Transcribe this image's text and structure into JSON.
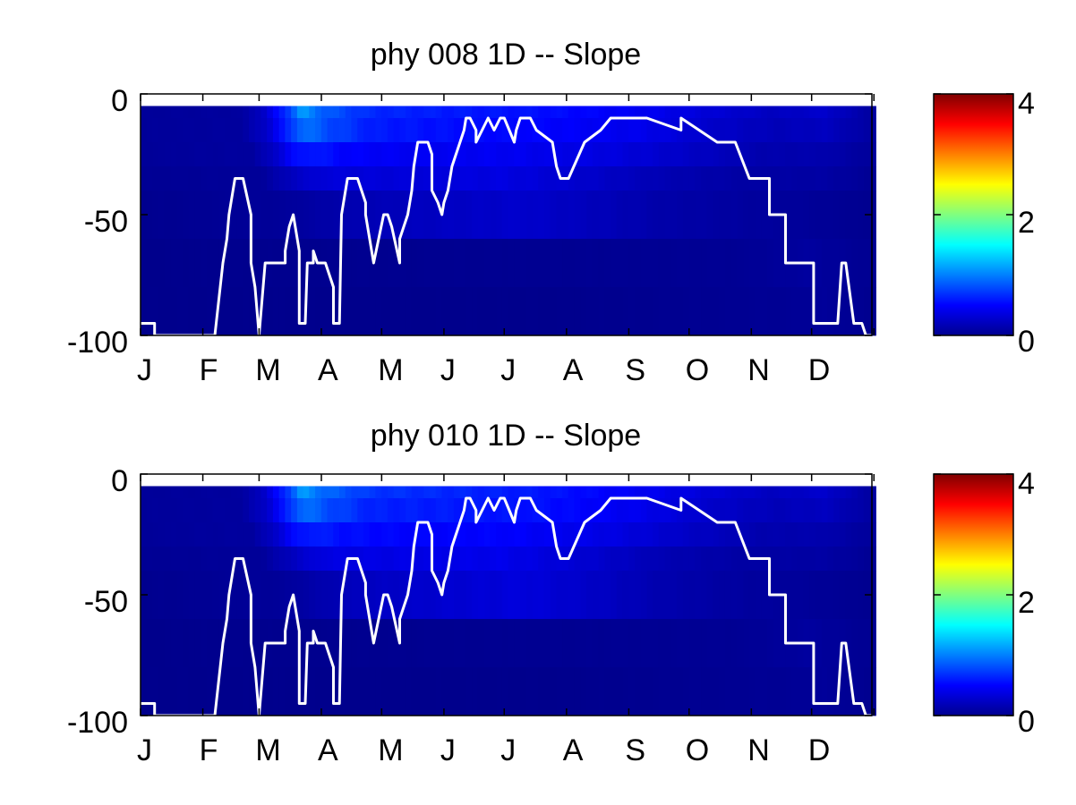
{
  "chart_data": [
    {
      "type": "heatmap",
      "title": "phy  008 1D   -- Slope",
      "xlabel": "",
      "ylabel": "",
      "x_ticklabels": [
        "J",
        "F",
        "M",
        "A",
        "M",
        "J",
        "J",
        "A",
        "S",
        "O",
        "N",
        "D"
      ],
      "y_ticklabels": [
        "0",
        "-50",
        "-100"
      ],
      "y_ticks": [
        0,
        -50,
        -100
      ],
      "ylim": [
        -100,
        0
      ],
      "xlim": [
        1,
        365
      ],
      "colormap": "jet",
      "clim": [
        0,
        4
      ],
      "colorbar_ticklabels": [
        "4",
        "2",
        "0"
      ],
      "colorbar_ticks": [
        4,
        2,
        0
      ],
      "depth_bands": [
        [
          -5,
          -10
        ],
        [
          -10,
          -20
        ],
        [
          -20,
          -30
        ],
        [
          -30,
          -40
        ],
        [
          -40,
          -60
        ],
        [
          -60,
          -80
        ],
        [
          -80,
          -100
        ]
      ],
      "band_profiles": [
        [
          [
            1,
            0.1
          ],
          [
            50,
            0.12
          ],
          [
            62,
            0.3
          ],
          [
            72,
            0.7
          ],
          [
            80,
            1.1
          ],
          [
            92,
            0.85
          ],
          [
            115,
            0.65
          ],
          [
            150,
            0.6
          ],
          [
            200,
            0.55
          ],
          [
            250,
            0.45
          ],
          [
            280,
            0.35
          ],
          [
            315,
            0.25
          ],
          [
            340,
            0.3
          ],
          [
            365,
            0.12
          ]
        ],
        [
          [
            1,
            0.1
          ],
          [
            50,
            0.12
          ],
          [
            62,
            0.28
          ],
          [
            72,
            0.6
          ],
          [
            80,
            0.95
          ],
          [
            92,
            0.8
          ],
          [
            115,
            0.6
          ],
          [
            150,
            0.55
          ],
          [
            200,
            0.5
          ],
          [
            250,
            0.42
          ],
          [
            280,
            0.3
          ],
          [
            315,
            0.22
          ],
          [
            340,
            0.25
          ],
          [
            365,
            0.12
          ]
        ],
        [
          [
            1,
            0.1
          ],
          [
            55,
            0.12
          ],
          [
            65,
            0.25
          ],
          [
            75,
            0.5
          ],
          [
            85,
            0.6
          ],
          [
            100,
            0.5
          ],
          [
            130,
            0.45
          ],
          [
            180,
            0.45
          ],
          [
            230,
            0.38
          ],
          [
            270,
            0.28
          ],
          [
            310,
            0.18
          ],
          [
            340,
            0.18
          ],
          [
            365,
            0.1
          ]
        ],
        [
          [
            1,
            0.08
          ],
          [
            60,
            0.1
          ],
          [
            75,
            0.25
          ],
          [
            90,
            0.35
          ],
          [
            130,
            0.35
          ],
          [
            180,
            0.38
          ],
          [
            220,
            0.3
          ],
          [
            260,
            0.2
          ],
          [
            300,
            0.14
          ],
          [
            340,
            0.14
          ],
          [
            365,
            0.08
          ]
        ],
        [
          [
            1,
            0.06
          ],
          [
            70,
            0.1
          ],
          [
            90,
            0.15
          ],
          [
            110,
            0.2
          ],
          [
            140,
            0.25
          ],
          [
            190,
            0.3
          ],
          [
            230,
            0.22
          ],
          [
            260,
            0.16
          ],
          [
            300,
            0.12
          ],
          [
            330,
            0.1
          ],
          [
            365,
            0.06
          ]
        ],
        [
          [
            1,
            0.05
          ],
          [
            90,
            0.06
          ],
          [
            200,
            0.07
          ],
          [
            300,
            0.08
          ],
          [
            330,
            0.12
          ],
          [
            365,
            0.07
          ]
        ],
        [
          [
            1,
            0.05
          ],
          [
            200,
            0.05
          ],
          [
            320,
            0.08
          ],
          [
            340,
            0.1
          ],
          [
            365,
            0.06
          ]
        ]
      ],
      "mixed_layer_depth": {
        "x": [
          1,
          8,
          8,
          38,
          42,
          44,
          45,
          48,
          52,
          56,
          56,
          58,
          60,
          60,
          63,
          73,
          73,
          75,
          77,
          80,
          80,
          83,
          84,
          87,
          87,
          89,
          93,
          97,
          97,
          100,
          101,
          104,
          109,
          113,
          113,
          115,
          117,
          122,
          124,
          124,
          126,
          130,
          130,
          134,
          134,
          136,
          137,
          139,
          144,
          146,
          146,
          149,
          151,
          152,
          154,
          156,
          158,
          160,
          162,
          163,
          165,
          168,
          168,
          174,
          177,
          180,
          182,
          187,
          188,
          190,
          191,
          195,
          198,
          206,
          208,
          210,
          214,
          222,
          222,
          230,
          235,
          240,
          240,
          253,
          253,
          270,
          270,
          288,
          288,
          294,
          297,
          304,
          306,
          314,
          314,
          322,
          322,
          336,
          336,
          348,
          350,
          352,
          352,
          356,
          359,
          360,
          362,
          365
        ],
        "y": [
          -95,
          -95,
          -100,
          -100,
          -70,
          -60,
          -50,
          -35,
          -35,
          -50,
          -70,
          -80,
          -100,
          -100,
          -70,
          -70,
          -65,
          -55,
          -50,
          -65,
          -95,
          -95,
          -70,
          -70,
          -65,
          -70,
          -70,
          -80,
          -95,
          -95,
          -50,
          -35,
          -35,
          -45,
          -50,
          -60,
          -70,
          -50,
          -50,
          -50,
          -55,
          -70,
          -60,
          -50,
          -50,
          -40,
          -30,
          -20,
          -20,
          -25,
          -40,
          -45,
          -50,
          -45,
          -40,
          -30,
          -25,
          -20,
          -15,
          -10,
          -10,
          -15,
          -20,
          -10,
          -15,
          -10,
          -10,
          -20,
          -15,
          -10,
          -10,
          -10,
          -15,
          -20,
          -30,
          -35,
          -35,
          -20,
          -20,
          -15,
          -10,
          -10,
          -10,
          -10,
          -10,
          -15,
          -10,
          -20,
          -20,
          -20,
          -20,
          -35,
          -35,
          -35,
          -50,
          -50,
          -70,
          -70,
          -95,
          -95,
          -70,
          -70,
          -70,
          -95,
          -95,
          -95,
          -100,
          -100
        ]
      },
      "grid": false,
      "legend": "none"
    },
    {
      "type": "heatmap",
      "title": "phy  010 1D   -- Slope",
      "xlabel": "",
      "ylabel": "",
      "x_ticklabels": [
        "J",
        "F",
        "M",
        "A",
        "M",
        "J",
        "J",
        "A",
        "S",
        "O",
        "N",
        "D"
      ],
      "y_ticklabels": [
        "0",
        "-50",
        "-100"
      ],
      "y_ticks": [
        0,
        -50,
        -100
      ],
      "ylim": [
        -100,
        0
      ],
      "xlim": [
        1,
        365
      ],
      "colormap": "jet",
      "clim": [
        0,
        4
      ],
      "colorbar_ticklabels": [
        "4",
        "2",
        "0"
      ],
      "colorbar_ticks": [
        4,
        2,
        0
      ],
      "depth_bands": [
        [
          -5,
          -10
        ],
        [
          -10,
          -20
        ],
        [
          -20,
          -30
        ],
        [
          -30,
          -40
        ],
        [
          -40,
          -60
        ],
        [
          -60,
          -80
        ],
        [
          -80,
          -100
        ]
      ],
      "band_profiles": [
        [
          [
            1,
            0.1
          ],
          [
            50,
            0.12
          ],
          [
            62,
            0.3
          ],
          [
            72,
            0.7
          ],
          [
            80,
            1.1
          ],
          [
            92,
            0.9
          ],
          [
            115,
            0.7
          ],
          [
            150,
            0.65
          ],
          [
            200,
            0.58
          ],
          [
            250,
            0.45
          ],
          [
            280,
            0.35
          ],
          [
            315,
            0.25
          ],
          [
            340,
            0.3
          ],
          [
            365,
            0.12
          ]
        ],
        [
          [
            1,
            0.1
          ],
          [
            50,
            0.12
          ],
          [
            62,
            0.28
          ],
          [
            72,
            0.6
          ],
          [
            80,
            0.95
          ],
          [
            92,
            0.8
          ],
          [
            115,
            0.62
          ],
          [
            150,
            0.6
          ],
          [
            200,
            0.55
          ],
          [
            250,
            0.42
          ],
          [
            280,
            0.3
          ],
          [
            315,
            0.22
          ],
          [
            340,
            0.25
          ],
          [
            365,
            0.12
          ]
        ],
        [
          [
            1,
            0.1
          ],
          [
            55,
            0.12
          ],
          [
            65,
            0.25
          ],
          [
            75,
            0.5
          ],
          [
            85,
            0.62
          ],
          [
            100,
            0.55
          ],
          [
            130,
            0.5
          ],
          [
            180,
            0.5
          ],
          [
            230,
            0.4
          ],
          [
            270,
            0.28
          ],
          [
            310,
            0.18
          ],
          [
            340,
            0.18
          ],
          [
            365,
            0.1
          ]
        ],
        [
          [
            1,
            0.08
          ],
          [
            60,
            0.1
          ],
          [
            75,
            0.25
          ],
          [
            90,
            0.38
          ],
          [
            130,
            0.4
          ],
          [
            180,
            0.42
          ],
          [
            220,
            0.32
          ],
          [
            260,
            0.2
          ],
          [
            300,
            0.14
          ],
          [
            340,
            0.14
          ],
          [
            365,
            0.08
          ]
        ],
        [
          [
            1,
            0.06
          ],
          [
            70,
            0.1
          ],
          [
            90,
            0.18
          ],
          [
            110,
            0.25
          ],
          [
            140,
            0.3
          ],
          [
            190,
            0.36
          ],
          [
            230,
            0.26
          ],
          [
            260,
            0.18
          ],
          [
            300,
            0.12
          ],
          [
            330,
            0.1
          ],
          [
            365,
            0.06
          ]
        ],
        [
          [
            1,
            0.05
          ],
          [
            90,
            0.06
          ],
          [
            200,
            0.07
          ],
          [
            300,
            0.08
          ],
          [
            330,
            0.12
          ],
          [
            365,
            0.07
          ]
        ],
        [
          [
            1,
            0.05
          ],
          [
            200,
            0.05
          ],
          [
            320,
            0.08
          ],
          [
            340,
            0.1
          ],
          [
            365,
            0.06
          ]
        ]
      ],
      "mixed_layer_depth": {
        "x": [
          1,
          8,
          8,
          38,
          42,
          44,
          45,
          48,
          52,
          56,
          56,
          58,
          60,
          60,
          63,
          73,
          73,
          75,
          77,
          80,
          80,
          83,
          84,
          87,
          87,
          89,
          93,
          97,
          97,
          100,
          101,
          104,
          109,
          113,
          113,
          115,
          117,
          122,
          124,
          124,
          126,
          130,
          130,
          134,
          134,
          136,
          137,
          139,
          144,
          146,
          146,
          149,
          151,
          152,
          154,
          156,
          158,
          160,
          162,
          163,
          165,
          168,
          168,
          174,
          177,
          180,
          182,
          187,
          188,
          190,
          191,
          195,
          198,
          206,
          208,
          210,
          214,
          222,
          222,
          230,
          235,
          240,
          240,
          253,
          253,
          270,
          270,
          288,
          288,
          294,
          297,
          304,
          306,
          314,
          314,
          322,
          322,
          336,
          336,
          348,
          350,
          352,
          352,
          356,
          359,
          360,
          362,
          365
        ],
        "y": [
          -95,
          -95,
          -100,
          -100,
          -70,
          -60,
          -50,
          -35,
          -35,
          -50,
          -70,
          -80,
          -100,
          -100,
          -70,
          -70,
          -65,
          -55,
          -50,
          -65,
          -95,
          -95,
          -70,
          -70,
          -65,
          -70,
          -70,
          -80,
          -95,
          -95,
          -50,
          -35,
          -35,
          -45,
          -50,
          -60,
          -70,
          -50,
          -50,
          -50,
          -55,
          -70,
          -60,
          -50,
          -50,
          -40,
          -30,
          -20,
          -20,
          -25,
          -40,
          -45,
          -50,
          -45,
          -40,
          -30,
          -25,
          -20,
          -15,
          -10,
          -10,
          -15,
          -20,
          -10,
          -15,
          -10,
          -10,
          -20,
          -15,
          -10,
          -10,
          -10,
          -15,
          -20,
          -30,
          -35,
          -35,
          -20,
          -20,
          -15,
          -10,
          -10,
          -10,
          -10,
          -10,
          -15,
          -10,
          -20,
          -20,
          -20,
          -20,
          -35,
          -35,
          -35,
          -50,
          -50,
          -70,
          -70,
          -95,
          -95,
          -70,
          -70,
          -70,
          -95,
          -95,
          -95,
          -100,
          -100
        ]
      },
      "grid": false,
      "legend": "none"
    }
  ]
}
